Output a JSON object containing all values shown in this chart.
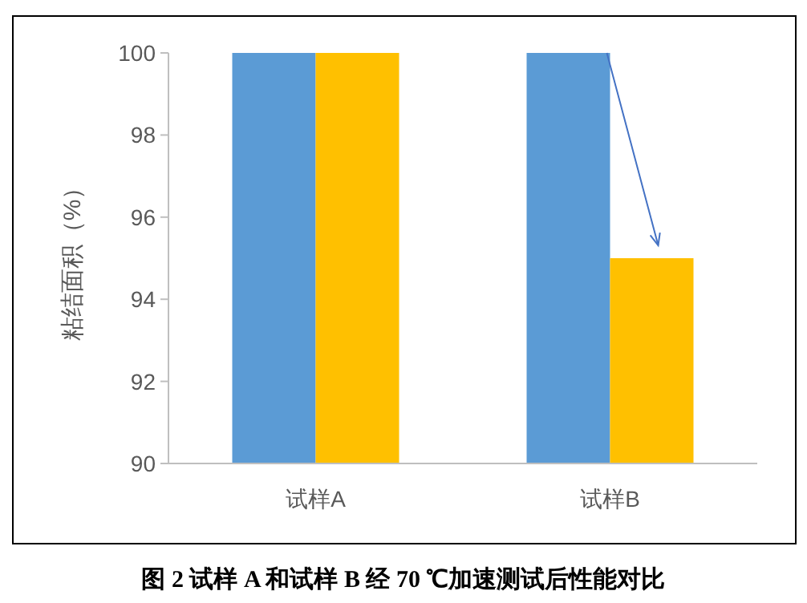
{
  "chart_data": {
    "type": "bar",
    "ylabel": "粘结面积（%）",
    "categories": [
      "试样A",
      "试样B"
    ],
    "series": [
      {
        "color": "#5b9bd5",
        "values": [
          100,
          100
        ]
      },
      {
        "color": "#ffc000",
        "values": [
          100,
          95
        ]
      }
    ],
    "ylim": [
      90,
      100
    ],
    "yticks": [
      90,
      92,
      94,
      96,
      98,
      100
    ],
    "grid": false,
    "annotations": [
      "图 2 试样 A 和试样 B 经 70 ℃加速测试后性能对比"
    ]
  }
}
